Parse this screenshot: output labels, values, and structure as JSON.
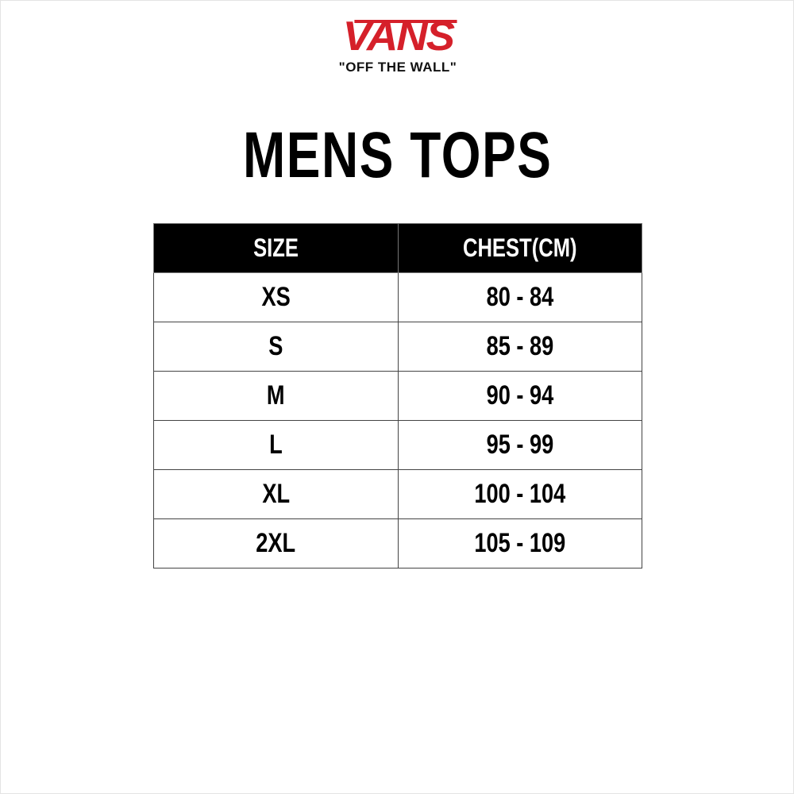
{
  "logo": {
    "brand": "VANS",
    "tagline": "\"OFF THE WALL\"",
    "color": "#d5202a"
  },
  "title": "MENS TOPS",
  "table": {
    "headers": [
      "SIZE",
      "CHEST(CM)"
    ],
    "rows": [
      [
        "XS",
        "80 - 84"
      ],
      [
        "S",
        "85 - 89"
      ],
      [
        "M",
        "90 - 94"
      ],
      [
        "L",
        "95 - 99"
      ],
      [
        "XL",
        "100 - 104"
      ],
      [
        "2XL",
        "105 - 109"
      ]
    ]
  }
}
